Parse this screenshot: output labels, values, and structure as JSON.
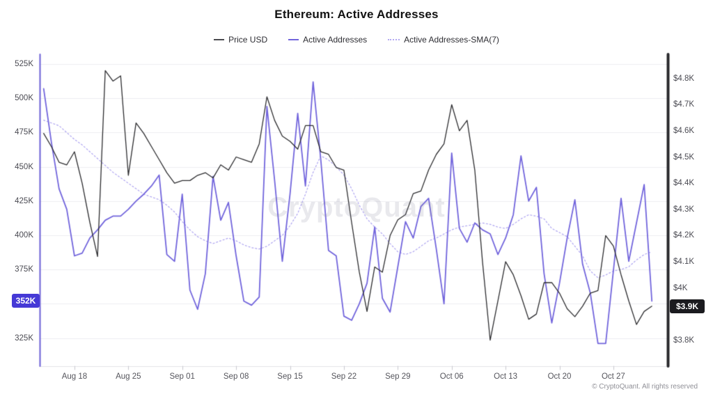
{
  "chart": {
    "title": "Ethereum: Active Addresses",
    "watermark": "CryptoQuant",
    "footer": "© CryptoQuant. All rights reserved"
  },
  "legend": {
    "items": [
      {
        "label": "Price USD",
        "color": "#4a4a4f",
        "style": "solid"
      },
      {
        "label": "Active Addresses",
        "color": "#7164dc",
        "style": "solid"
      },
      {
        "label": "Active Addresses-SMA(7)",
        "color": "#b2a8f2",
        "style": "dotted"
      }
    ]
  },
  "badges": {
    "left": {
      "text": "352K",
      "color": "#4539d6"
    },
    "right": {
      "text": "$3.9K",
      "color": "#1b1b1f"
    }
  },
  "axes": {
    "left_ticks": [
      {
        "v": 525,
        "label": "525K"
      },
      {
        "v": 500,
        "label": "500K"
      },
      {
        "v": 475,
        "label": "475K"
      },
      {
        "v": 450,
        "label": "450K"
      },
      {
        "v": 425,
        "label": "425K"
      },
      {
        "v": 400,
        "label": "400K"
      },
      {
        "v": 375,
        "label": "375K"
      },
      {
        "v": 325,
        "label": "325K"
      }
    ],
    "right_ticks": [
      {
        "v": 4.8,
        "label": "$4.8K"
      },
      {
        "v": 4.7,
        "label": "$4.7K"
      },
      {
        "v": 4.6,
        "label": "$4.6K"
      },
      {
        "v": 4.5,
        "label": "$4.5K"
      },
      {
        "v": 4.4,
        "label": "$4.4K"
      },
      {
        "v": 4.3,
        "label": "$4.3K"
      },
      {
        "v": 4.2,
        "label": "$4.2K"
      },
      {
        "v": 4.1,
        "label": "$4.1K"
      },
      {
        "v": 4.0,
        "label": "$4K"
      },
      {
        "v": 3.8,
        "label": "$3.8K"
      }
    ],
    "gridline_values": [
      525,
      500,
      475,
      450,
      425,
      400,
      375,
      350,
      325
    ],
    "x_ticks": [
      {
        "i": 4,
        "label": "Aug 18"
      },
      {
        "i": 11,
        "label": "Aug 25"
      },
      {
        "i": 18,
        "label": "Sep 01"
      },
      {
        "i": 25,
        "label": "Sep 08"
      },
      {
        "i": 32,
        "label": "Sep 15"
      },
      {
        "i": 39,
        "label": "Sep 22"
      },
      {
        "i": 46,
        "label": "Sep 29"
      },
      {
        "i": 53,
        "label": "Oct 06"
      },
      {
        "i": 60,
        "label": "Oct 13"
      },
      {
        "i": 67,
        "label": "Oct 20"
      },
      {
        "i": 74,
        "label": "Oct 27"
      }
    ]
  },
  "chart_data": {
    "type": "line",
    "title": "Ethereum: Active Addresses",
    "y_left_label": "Active Addresses",
    "y_right_label": "Price USD",
    "y_left_range_K": [
      315,
      533
    ],
    "y_right_range_K_usd": [
      3.72,
      4.89
    ],
    "grid": true,
    "legend_position": "top",
    "categories": [
      "Aug 14",
      "Aug 15",
      "Aug 16",
      "Aug 17",
      "Aug 18",
      "Aug 19",
      "Aug 20",
      "Aug 21",
      "Aug 22",
      "Aug 23",
      "Aug 24",
      "Aug 25",
      "Aug 26",
      "Aug 27",
      "Aug 28",
      "Aug 29",
      "Aug 30",
      "Aug 31",
      "Sep 01",
      "Sep 02",
      "Sep 03",
      "Sep 04",
      "Sep 05",
      "Sep 06",
      "Sep 07",
      "Sep 08",
      "Sep 09",
      "Sep 10",
      "Sep 11",
      "Sep 12",
      "Sep 13",
      "Sep 14",
      "Sep 15",
      "Sep 16",
      "Sep 17",
      "Sep 18",
      "Sep 19",
      "Sep 20",
      "Sep 21",
      "Sep 22",
      "Sep 23",
      "Sep 24",
      "Sep 25",
      "Sep 26",
      "Sep 27",
      "Sep 28",
      "Sep 29",
      "Sep 30",
      "Oct 01",
      "Oct 02",
      "Oct 03",
      "Oct 04",
      "Oct 05",
      "Oct 06",
      "Oct 07",
      "Oct 08",
      "Oct 09",
      "Oct 10",
      "Oct 11",
      "Oct 12",
      "Oct 13",
      "Oct 14",
      "Oct 15",
      "Oct 16",
      "Oct 17",
      "Oct 18",
      "Oct 19",
      "Oct 20",
      "Oct 21",
      "Oct 22",
      "Oct 23",
      "Oct 24",
      "Oct 25",
      "Oct 26",
      "Oct 27",
      "Oct 28",
      "Oct 29",
      "Oct 30",
      "Oct 31",
      "Nov 01"
    ],
    "series": [
      {
        "name": "Price USD",
        "axis": "right",
        "unit": "K USD",
        "color": "#2b2b2e",
        "dash": false,
        "width": 1.3,
        "values": [
          4.59,
          4.54,
          4.48,
          4.47,
          4.52,
          4.4,
          4.25,
          4.12,
          4.83,
          4.79,
          4.81,
          4.43,
          4.63,
          4.59,
          4.54,
          4.49,
          4.44,
          4.4,
          4.41,
          4.41,
          4.43,
          4.44,
          4.42,
          4.47,
          4.45,
          4.5,
          4.49,
          4.48,
          4.55,
          4.73,
          4.64,
          4.58,
          4.56,
          4.53,
          4.62,
          4.62,
          4.52,
          4.51,
          4.46,
          4.45,
          4.25,
          4.06,
          3.91,
          4.08,
          4.06,
          4.2,
          4.26,
          4.28,
          4.36,
          4.37,
          4.45,
          4.51,
          4.55,
          4.7,
          4.6,
          4.64,
          4.45,
          4.1,
          3.8,
          3.95,
          4.1,
          4.05,
          3.97,
          3.88,
          3.9,
          4.02,
          4.02,
          3.98,
          3.92,
          3.89,
          3.93,
          3.98,
          3.99,
          4.2,
          4.16,
          4.05,
          3.95,
          3.86,
          3.91,
          3.93
        ]
      },
      {
        "name": "Active Addresses",
        "axis": "left",
        "unit": "K addresses",
        "color": "#7164dc",
        "dash": false,
        "width": 1.8,
        "values": [
          507,
          468,
          434,
          419,
          385,
          387,
          398,
          404,
          411,
          414,
          414,
          419,
          425,
          430,
          436,
          444,
          386,
          381,
          430,
          360,
          346,
          372,
          443,
          411,
          424,
          385,
          352,
          349,
          355,
          494,
          440,
          381,
          430,
          489,
          436,
          512,
          455,
          389,
          385,
          341,
          338,
          350,
          365,
          406,
          354,
          344,
          377,
          410,
          398,
          421,
          427,
          390,
          350,
          460,
          405,
          395,
          409,
          404,
          401,
          386,
          398,
          415,
          458,
          425,
          435,
          372,
          336,
          365,
          398,
          426,
          379,
          358,
          321,
          321,
          374,
          427,
          381,
          409,
          437,
          352
        ]
      },
      {
        "name": "Active Addresses-SMA(7)",
        "axis": "left",
        "unit": "K addresses",
        "color": "#aca2f0",
        "dash": true,
        "width": 1.2,
        "values": [
          484,
          482,
          480,
          475,
          470,
          466,
          461,
          456,
          451,
          446,
          442,
          438,
          434,
          430,
          428,
          426,
          422,
          417,
          410,
          404,
          399,
          396,
          394,
          396,
          398,
          396,
          393,
          391,
          390,
          392,
          396,
          400,
          407,
          416,
          430,
          446,
          458,
          455,
          450,
          444,
          434,
          422,
          412,
          406,
          401,
          394,
          388,
          386,
          388,
          392,
          396,
          398,
          401,
          404,
          406,
          407,
          408,
          409,
          408,
          406,
          405,
          408,
          412,
          415,
          414,
          412,
          405,
          402,
          399,
          392,
          385,
          374,
          369,
          371,
          374,
          375,
          377,
          382,
          386,
          388
        ]
      }
    ]
  }
}
